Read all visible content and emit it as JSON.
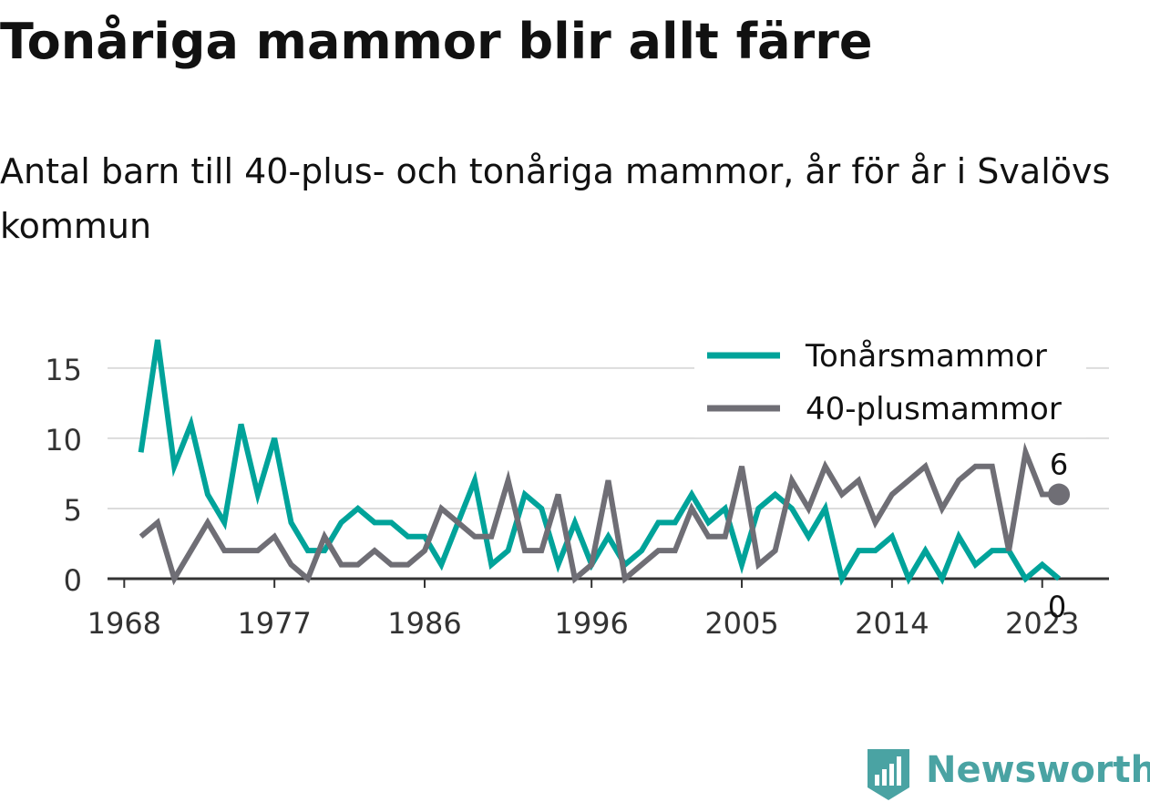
{
  "title": "Tonåriga mammor blir allt färre",
  "subtitle": "Antal barn till 40-plus- och tonåriga mammor, år för år i Svalövs kommun",
  "brand": {
    "name": "Newsworthy",
    "icon": "bar-chart-badge-icon",
    "color": "#4aa3a3"
  },
  "chart_data": {
    "type": "line",
    "x": [
      1969,
      1970,
      1971,
      1972,
      1973,
      1974,
      1975,
      1976,
      1977,
      1978,
      1979,
      1980,
      1981,
      1982,
      1983,
      1984,
      1985,
      1986,
      1987,
      1988,
      1989,
      1990,
      1991,
      1992,
      1993,
      1994,
      1995,
      1996,
      1997,
      1998,
      1999,
      2000,
      2001,
      2002,
      2003,
      2004,
      2005,
      2006,
      2007,
      2008,
      2009,
      2010,
      2011,
      2012,
      2013,
      2014,
      2015,
      2016,
      2017,
      2018,
      2019,
      2020,
      2021,
      2022,
      2023,
      2024
    ],
    "x_ticks": [
      1968,
      1977,
      1986,
      1996,
      2005,
      2014,
      2023
    ],
    "y_ticks": [
      0,
      5,
      10,
      15
    ],
    "ylim": [
      0,
      17
    ],
    "xlim": [
      1967,
      2027
    ],
    "grid": true,
    "legend_position": "top-right",
    "series": [
      {
        "name": "Tonårsmammor",
        "color": "#00a39a",
        "values": [
          9,
          17,
          8,
          11,
          6,
          4,
          11,
          6,
          10,
          4,
          2,
          2,
          4,
          5,
          4,
          4,
          3,
          3,
          1,
          4,
          7,
          1,
          2,
          6,
          5,
          1,
          4,
          1,
          3,
          1,
          2,
          4,
          4,
          6,
          4,
          5,
          1,
          5,
          6,
          5,
          3,
          5,
          0,
          2,
          2,
          3,
          0,
          2,
          0,
          3,
          1,
          2,
          2,
          0,
          1,
          0
        ],
        "end_label": "0"
      },
      {
        "name": "40-plusmammor",
        "color": "#6f6e75",
        "values": [
          3,
          4,
          0,
          2,
          4,
          2,
          2,
          2,
          3,
          1,
          0,
          3,
          1,
          1,
          2,
          1,
          1,
          2,
          5,
          4,
          3,
          3,
          7,
          2,
          2,
          6,
          0,
          1,
          7,
          0,
          1,
          2,
          2,
          5,
          3,
          3,
          8,
          1,
          2,
          7,
          5,
          8,
          6,
          7,
          4,
          6,
          7,
          8,
          5,
          7,
          8,
          8,
          2,
          9,
          6,
          6
        ],
        "end_label": "6"
      }
    ]
  }
}
